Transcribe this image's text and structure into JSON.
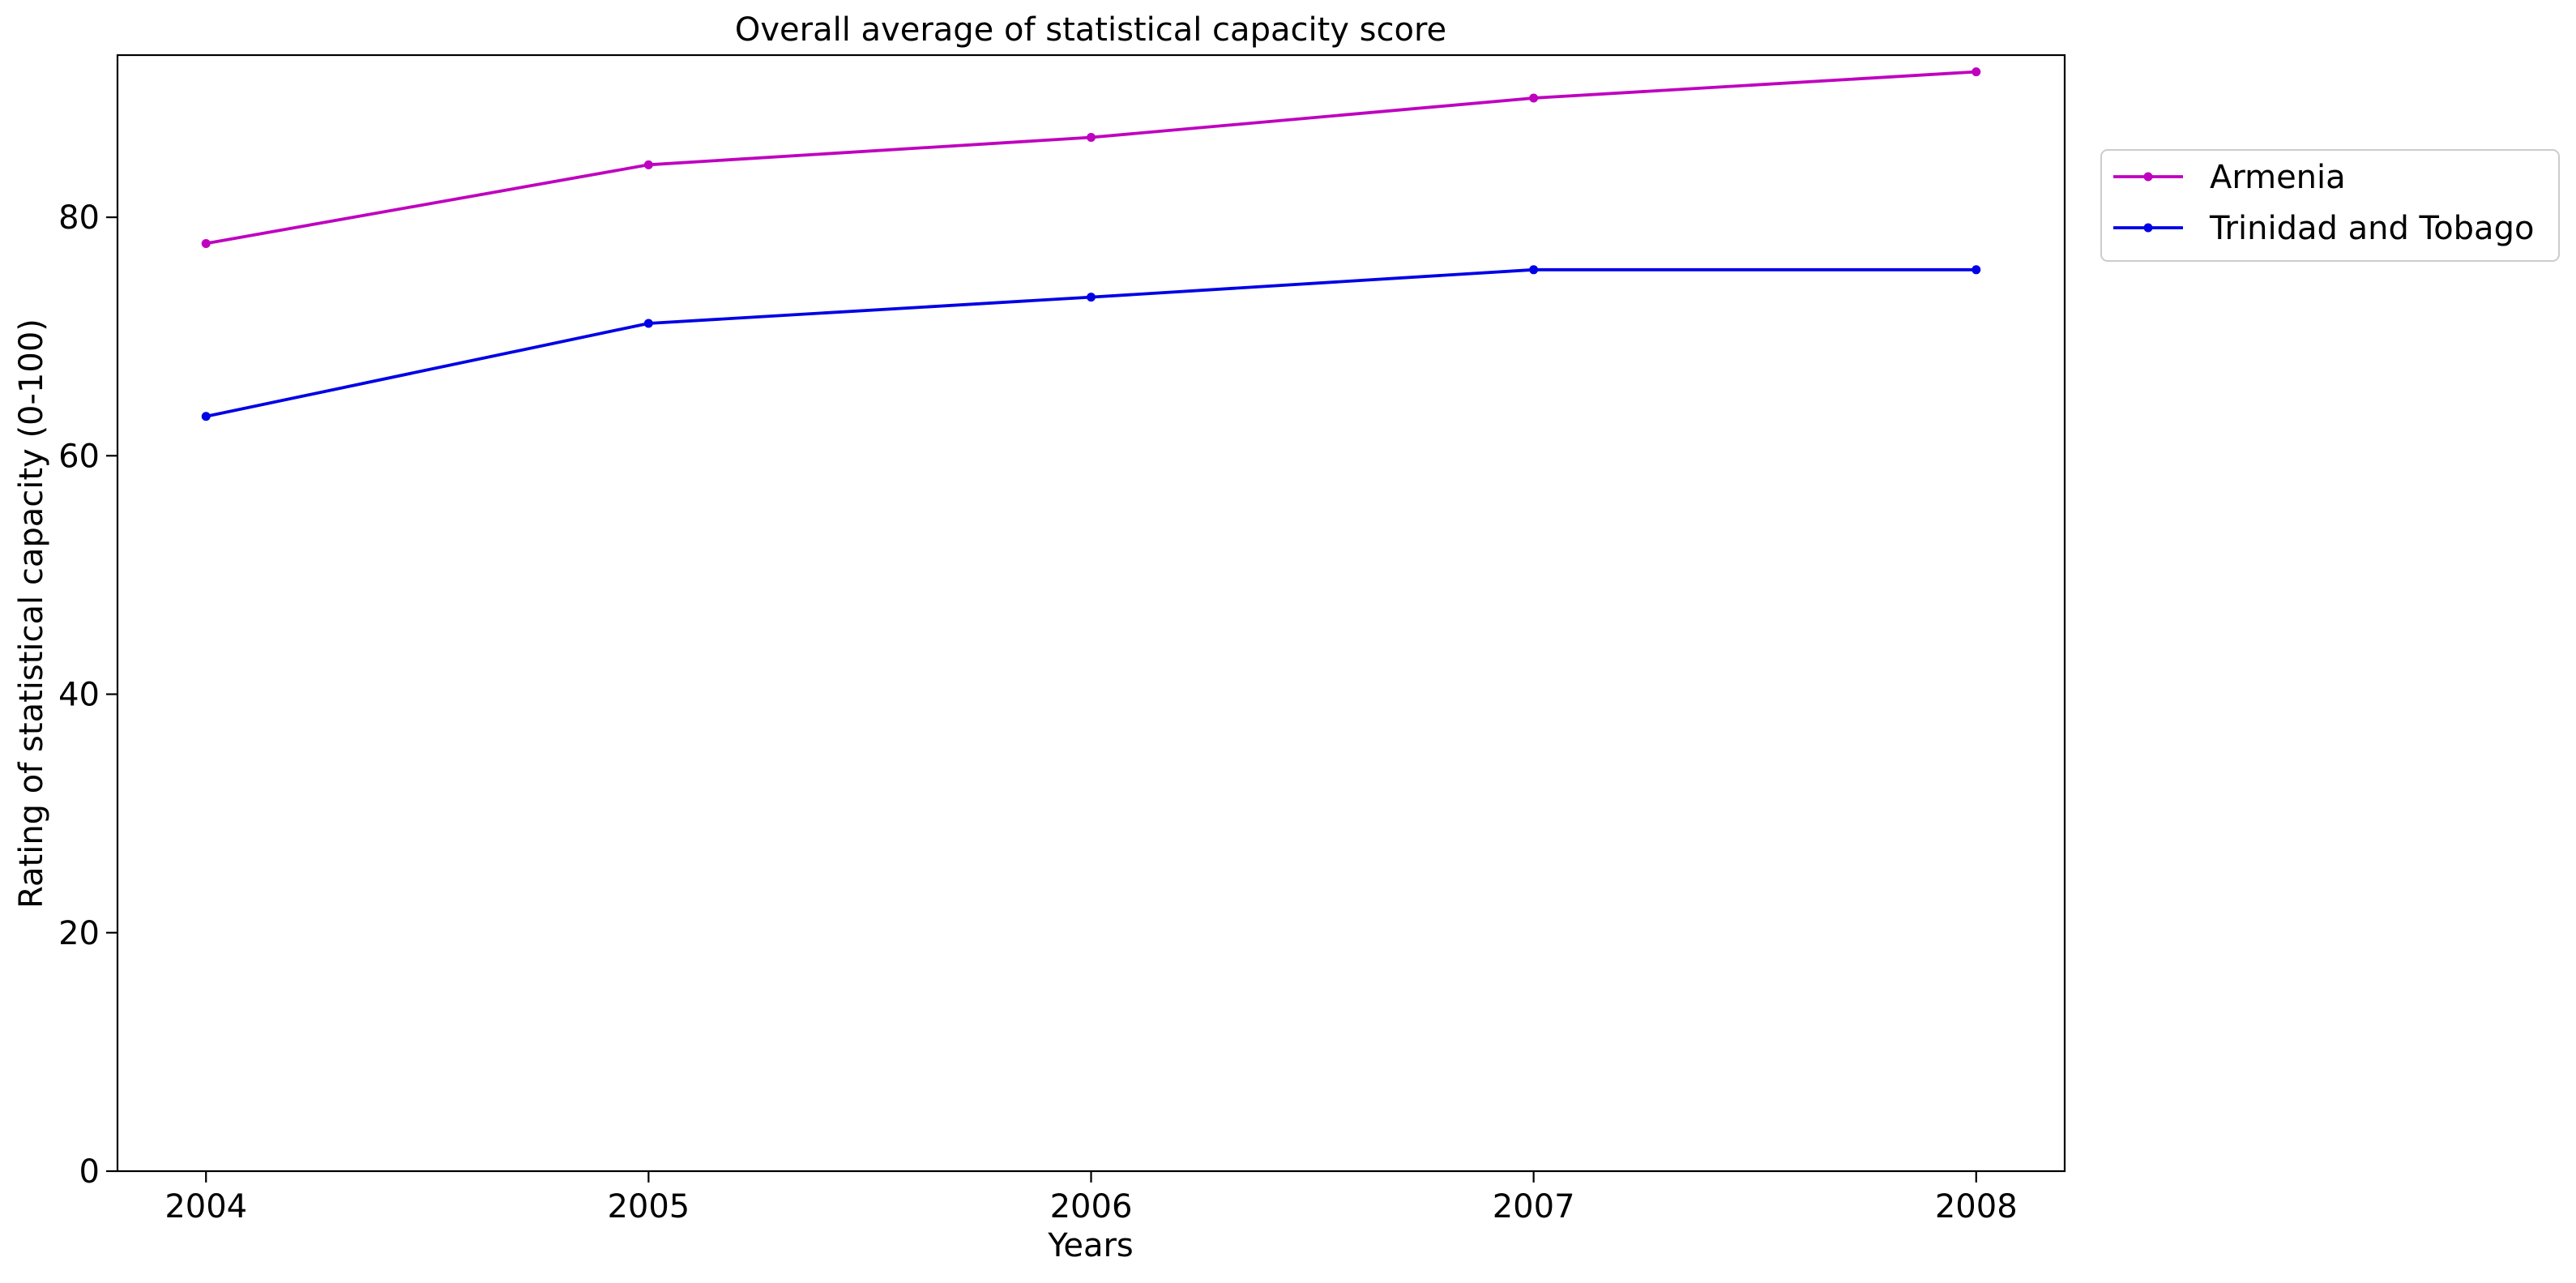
{
  "chart_data": {
    "type": "line",
    "title": "Overall average of statistical capacity score",
    "xlabel": "Years",
    "ylabel": "Rating of statistical capacity (0-100)",
    "x": [
      2004,
      2005,
      2006,
      2007,
      2008
    ],
    "x_tick_labels": [
      "2004",
      "2005",
      "2006",
      "2007",
      "2008"
    ],
    "xlim": [
      2003.8,
      2008.2
    ],
    "ylim": [
      0,
      93.6
    ],
    "y_ticks": [
      0,
      20,
      40,
      60,
      80
    ],
    "y_tick_labels": [
      "0",
      "20",
      "40",
      "60",
      "80"
    ],
    "grid": false,
    "legend_position": "outside-top-right",
    "series": [
      {
        "name": "Armenia",
        "color": "#bf00bf",
        "values": [
          77.8,
          84.4,
          86.7,
          90.0,
          92.2
        ]
      },
      {
        "name": "Trinidad and Tobago",
        "color": "#0000e6",
        "values": [
          63.3,
          71.1,
          73.3,
          75.6,
          75.6
        ]
      }
    ]
  }
}
